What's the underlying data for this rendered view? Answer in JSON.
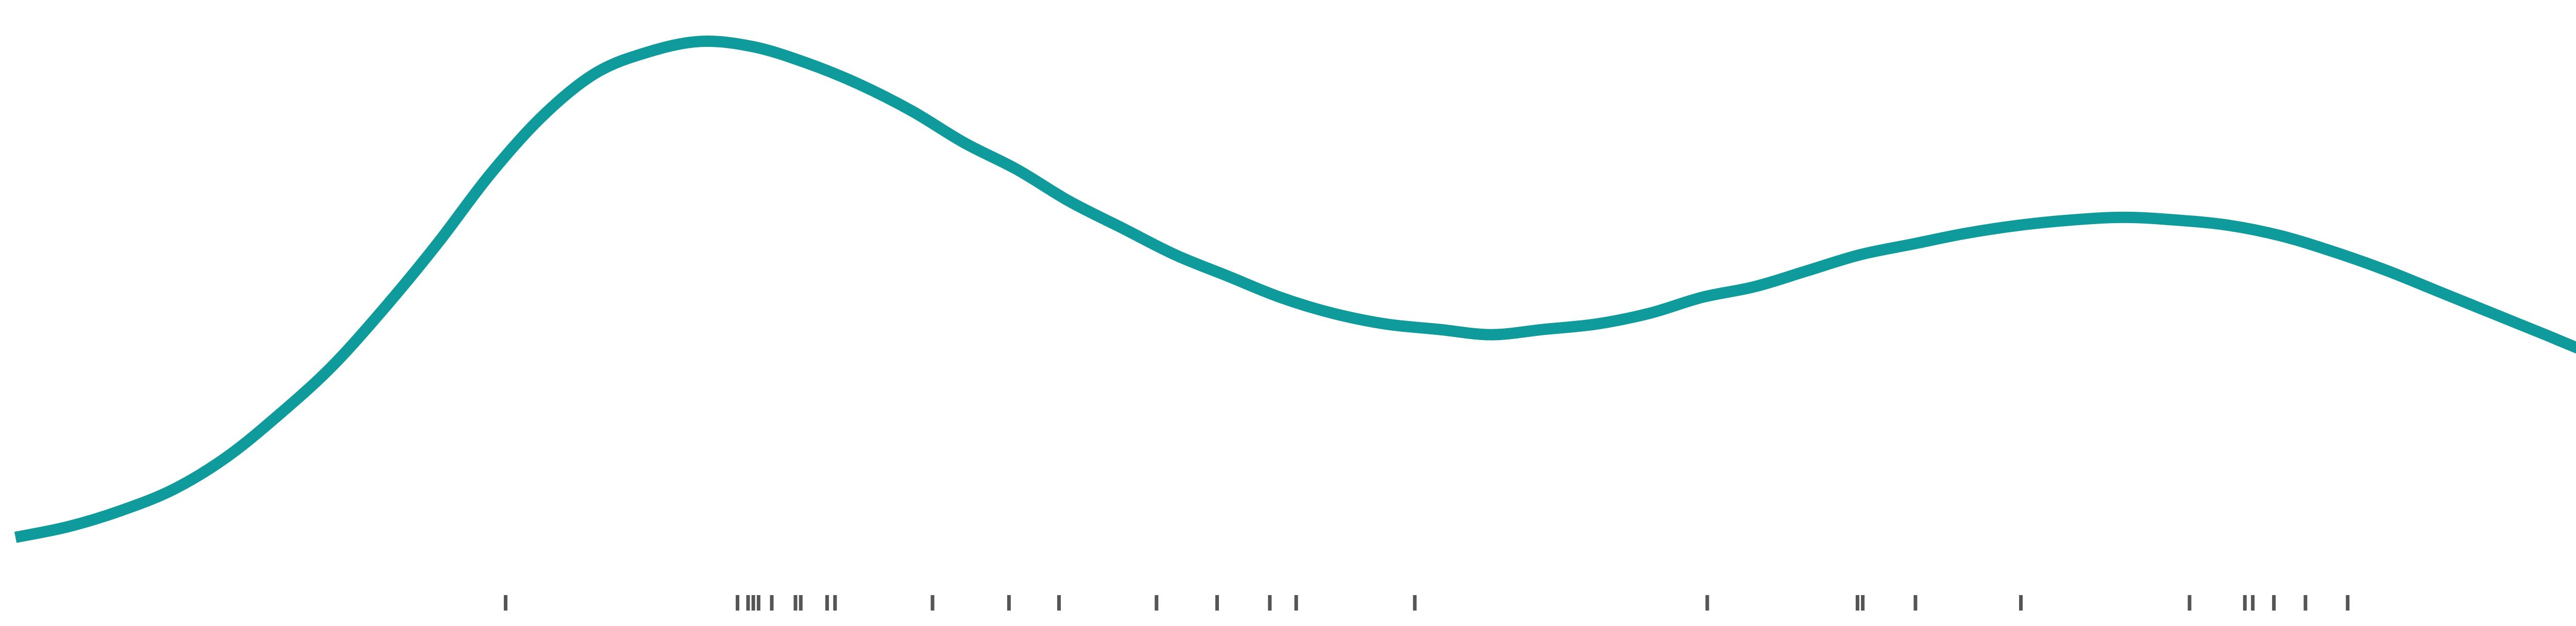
{
  "chart_data": {
    "type": "density",
    "title": "",
    "xlabel": "",
    "ylabel": "",
    "xlim": [
      0,
      100
    ],
    "ylim": [
      0,
      1
    ],
    "grid": false,
    "legend": "none",
    "curve_color": "#0f9b9b",
    "rug_color": "#555555",
    "density_curve": {
      "x": [
        0,
        2,
        4,
        6,
        8,
        10,
        12,
        14,
        16,
        18,
        20,
        22,
        24,
        26,
        28,
        30,
        32,
        34,
        36,
        38,
        40,
        42,
        44,
        46,
        48,
        50,
        52,
        54,
        56,
        58,
        60,
        62,
        64,
        66,
        68,
        70,
        72,
        74,
        76,
        78,
        80,
        82,
        84,
        86,
        88,
        90,
        92,
        94,
        96,
        98,
        100
      ],
      "y": [
        0.06,
        0.08,
        0.11,
        0.15,
        0.21,
        0.29,
        0.38,
        0.49,
        0.61,
        0.74,
        0.85,
        0.93,
        0.97,
        0.99,
        0.98,
        0.95,
        0.91,
        0.86,
        0.8,
        0.75,
        0.69,
        0.64,
        0.59,
        0.55,
        0.51,
        0.48,
        0.46,
        0.45,
        0.44,
        0.45,
        0.46,
        0.48,
        0.51,
        0.53,
        0.56,
        0.59,
        0.61,
        0.63,
        0.645,
        0.655,
        0.66,
        0.655,
        0.645,
        0.625,
        0.595,
        0.56,
        0.52,
        0.48,
        0.44,
        0.4,
        0.37
      ]
    },
    "rug": [
      18.6,
      27.4,
      27.8,
      28.0,
      28.2,
      28.7,
      29.6,
      29.8,
      30.8,
      31.1,
      34.8,
      37.7,
      39.6,
      43.3,
      45.6,
      47.6,
      48.6,
      53.1,
      64.2,
      69.9,
      70.1,
      72.1,
      76.1,
      82.5,
      84.6,
      84.9,
      85.7,
      86.9,
      88.5,
      97.5
    ]
  }
}
